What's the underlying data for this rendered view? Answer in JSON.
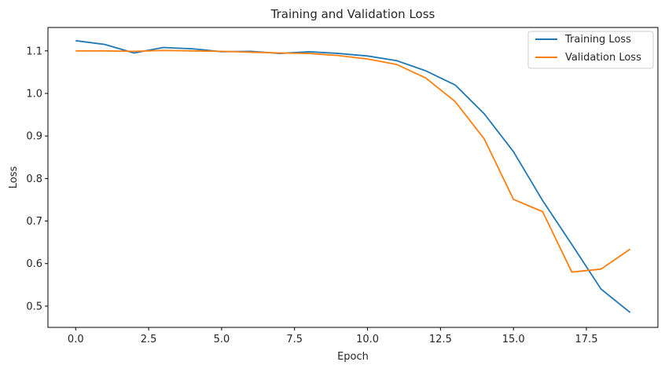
{
  "chart_data": {
    "type": "line",
    "title": "Training and Validation Loss",
    "xlabel": "Epoch",
    "ylabel": "Loss",
    "xlim": [
      -0.95,
      19.95
    ],
    "ylim": [
      0.45,
      1.155
    ],
    "xticks": [
      0,
      2.5,
      5,
      7.5,
      10,
      12.5,
      15,
      17.5
    ],
    "xtick_labels": [
      "0.0",
      "2.5",
      "5.0",
      "7.5",
      "10.0",
      "12.5",
      "15.0",
      "17.5"
    ],
    "yticks": [
      0.5,
      0.6,
      0.7,
      0.8,
      0.9,
      1.0,
      1.1
    ],
    "ytick_labels": [
      "0.5",
      "0.6",
      "0.7",
      "0.8",
      "0.9",
      "1.0",
      "1.1"
    ],
    "grid": false,
    "legend_position": "top-right",
    "x": [
      0,
      1,
      2,
      3,
      4,
      5,
      6,
      7,
      8,
      9,
      10,
      11,
      12,
      13,
      14,
      15,
      16,
      17,
      18,
      19
    ],
    "series": [
      {
        "name": "Training Loss",
        "color": "#1f77b4",
        "values": [
          1.124,
          1.115,
          1.095,
          1.108,
          1.105,
          1.098,
          1.099,
          1.094,
          1.098,
          1.094,
          1.088,
          1.077,
          1.053,
          1.02,
          0.952,
          0.863,
          0.748,
          0.645,
          0.54,
          0.485
        ]
      },
      {
        "name": "Validation Loss",
        "color": "#ff7f0e",
        "values": [
          1.1,
          1.1,
          1.099,
          1.101,
          1.1,
          1.099,
          1.097,
          1.095,
          1.094,
          1.089,
          1.081,
          1.068,
          1.036,
          0.981,
          0.893,
          0.751,
          0.722,
          0.58,
          0.587,
          0.634
        ]
      }
    ]
  }
}
